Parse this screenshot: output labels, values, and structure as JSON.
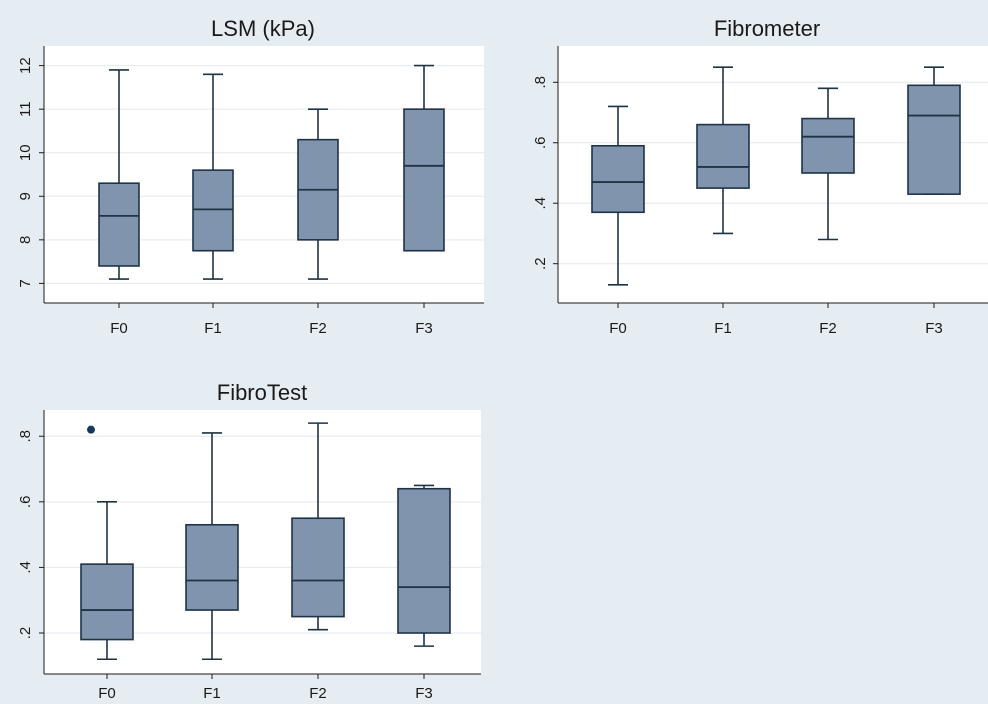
{
  "chart_data": [
    {
      "type": "box",
      "title": "LSM (kPa)",
      "categories": [
        "F0",
        "F1",
        "F2",
        "F3"
      ],
      "yticks": [
        {
          "value": 7,
          "label": "7"
        },
        {
          "value": 8,
          "label": "8"
        },
        {
          "value": 9,
          "label": "9"
        },
        {
          "value": 10,
          "label": "10"
        },
        {
          "value": 11,
          "label": "11"
        },
        {
          "value": 12,
          "label": "12"
        }
      ],
      "ylim": [
        6.55,
        12.45
      ],
      "grid": true,
      "boxes": [
        {
          "min": 7.1,
          "q1": 7.4,
          "median": 8.55,
          "q3": 9.3,
          "max": 11.9,
          "outliers": []
        },
        {
          "min": 7.1,
          "q1": 7.75,
          "median": 8.7,
          "q3": 9.6,
          "max": 11.8,
          "outliers": []
        },
        {
          "min": 7.1,
          "q1": 8.0,
          "median": 9.15,
          "q3": 10.3,
          "max": 11.0,
          "outliers": []
        },
        {
          "min": 7.75,
          "q1": 7.75,
          "median": 9.7,
          "q3": 11.0,
          "max": 12.0,
          "outliers": []
        }
      ]
    },
    {
      "type": "box",
      "title": "Fibrometer",
      "categories": [
        "F0",
        "F1",
        "F2",
        "F3"
      ],
      "yticks": [
        {
          "value": 0.2,
          "label": ".2"
        },
        {
          "value": 0.4,
          "label": ".4"
        },
        {
          "value": 0.6,
          "label": ".6"
        },
        {
          "value": 0.8,
          "label": ".8"
        }
      ],
      "ylim": [
        0.07,
        0.92
      ],
      "grid": true,
      "boxes": [
        {
          "min": 0.13,
          "q1": 0.37,
          "median": 0.47,
          "q3": 0.59,
          "max": 0.72,
          "outliers": []
        },
        {
          "min": 0.3,
          "q1": 0.45,
          "median": 0.52,
          "q3": 0.66,
          "max": 0.85,
          "outliers": []
        },
        {
          "min": 0.28,
          "q1": 0.5,
          "median": 0.62,
          "q3": 0.68,
          "max": 0.78,
          "outliers": []
        },
        {
          "min": 0.43,
          "q1": 0.43,
          "median": 0.69,
          "q3": 0.79,
          "max": 0.85,
          "outliers": []
        }
      ]
    },
    {
      "type": "box",
      "title": "FibroTest",
      "categories": [
        "F0",
        "F1",
        "F2",
        "F3"
      ],
      "yticks": [
        {
          "value": 0.2,
          "label": ".2"
        },
        {
          "value": 0.4,
          "label": ".4"
        },
        {
          "value": 0.6,
          "label": ".6"
        },
        {
          "value": 0.8,
          "label": ".8"
        }
      ],
      "ylim": [
        0.075,
        0.88
      ],
      "grid": true,
      "boxes": [
        {
          "min": 0.12,
          "q1": 0.18,
          "median": 0.27,
          "q3": 0.41,
          "max": 0.6,
          "outliers": [
            0.82
          ]
        },
        {
          "min": 0.12,
          "q1": 0.27,
          "median": 0.36,
          "q3": 0.53,
          "max": 0.81,
          "outliers": []
        },
        {
          "min": 0.21,
          "q1": 0.25,
          "median": 0.36,
          "q3": 0.55,
          "max": 0.84,
          "outliers": []
        },
        {
          "min": 0.16,
          "q1": 0.2,
          "median": 0.34,
          "q3": 0.64,
          "max": 0.65,
          "outliers": []
        }
      ]
    }
  ],
  "colors": {
    "page_background": "#e6edf2",
    "plot_background": "#ffffff",
    "box_fill": "#8095ad",
    "box_stroke": "#1f3347",
    "grid": "#e3e9ee",
    "axis": "#1a1a1a",
    "outlier": "#17375e"
  }
}
